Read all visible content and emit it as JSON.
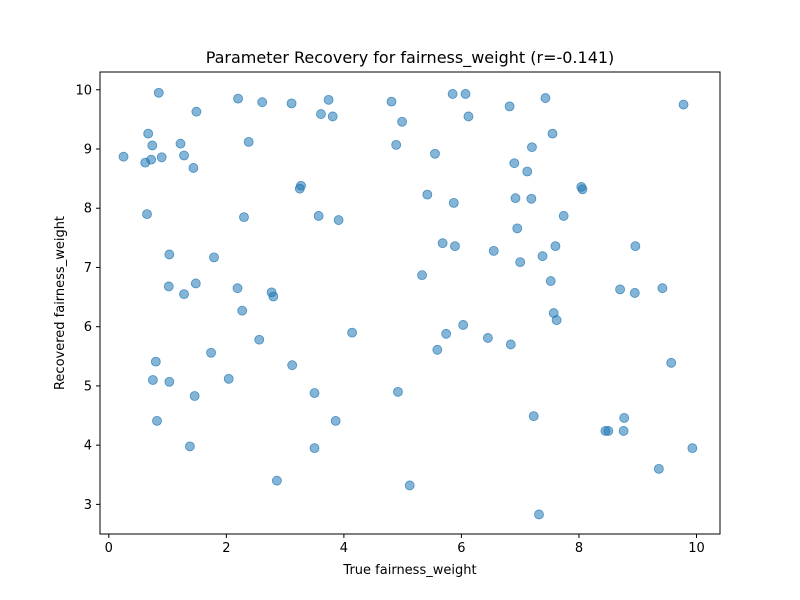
{
  "chart_data": {
    "type": "scatter",
    "title": "Parameter Recovery for fairness_weight (r=-0.141)",
    "xlabel": "True fairness_weight",
    "ylabel": "Recovered fairness_weight",
    "xlim": [
      -0.15,
      10.4
    ],
    "ylim": [
      2.5,
      10.3
    ],
    "xticks": [
      0,
      2,
      4,
      6,
      8,
      10
    ],
    "yticks": [
      3,
      4,
      5,
      6,
      7,
      8,
      9,
      10
    ],
    "grid": false,
    "marker_color": "#1f77b4",
    "marker_alpha": 0.55,
    "points": [
      {
        "x": 0.85,
        "y": 9.95
      },
      {
        "x": 0.25,
        "y": 8.87
      },
      {
        "x": 0.62,
        "y": 8.77
      },
      {
        "x": 0.67,
        "y": 9.26
      },
      {
        "x": 0.72,
        "y": 8.82
      },
      {
        "x": 0.74,
        "y": 9.06
      },
      {
        "x": 0.9,
        "y": 8.86
      },
      {
        "x": 1.22,
        "y": 9.09
      },
      {
        "x": 1.28,
        "y": 8.89
      },
      {
        "x": 1.44,
        "y": 8.68
      },
      {
        "x": 1.49,
        "y": 9.63
      },
      {
        "x": 2.2,
        "y": 9.85
      },
      {
        "x": 2.38,
        "y": 9.12
      },
      {
        "x": 2.61,
        "y": 9.79
      },
      {
        "x": 3.11,
        "y": 9.77
      },
      {
        "x": 3.61,
        "y": 9.59
      },
      {
        "x": 3.74,
        "y": 9.83
      },
      {
        "x": 3.81,
        "y": 9.55
      },
      {
        "x": 4.81,
        "y": 9.8
      },
      {
        "x": 4.99,
        "y": 9.46
      },
      {
        "x": 4.89,
        "y": 9.07
      },
      {
        "x": 5.85,
        "y": 9.93
      },
      {
        "x": 6.07,
        "y": 9.93
      },
      {
        "x": 6.12,
        "y": 9.55
      },
      {
        "x": 6.82,
        "y": 9.72
      },
      {
        "x": 7.43,
        "y": 9.86
      },
      {
        "x": 7.55,
        "y": 9.26
      },
      {
        "x": 9.78,
        "y": 9.75
      },
      {
        "x": 5.55,
        "y": 8.92
      },
      {
        "x": 7.2,
        "y": 9.03
      },
      {
        "x": 6.9,
        "y": 8.76
      },
      {
        "x": 7.12,
        "y": 8.62
      },
      {
        "x": 0.65,
        "y": 7.9
      },
      {
        "x": 2.3,
        "y": 7.85
      },
      {
        "x": 3.25,
        "y": 8.33
      },
      {
        "x": 3.27,
        "y": 8.38
      },
      {
        "x": 3.57,
        "y": 7.87
      },
      {
        "x": 3.91,
        "y": 7.8
      },
      {
        "x": 5.42,
        "y": 8.23
      },
      {
        "x": 5.87,
        "y": 8.09
      },
      {
        "x": 6.92,
        "y": 8.17
      },
      {
        "x": 7.19,
        "y": 8.16
      },
      {
        "x": 8.04,
        "y": 8.36
      },
      {
        "x": 8.06,
        "y": 8.32
      },
      {
        "x": 7.74,
        "y": 7.87
      },
      {
        "x": 6.95,
        "y": 7.66
      },
      {
        "x": 1.03,
        "y": 7.22
      },
      {
        "x": 1.79,
        "y": 7.17
      },
      {
        "x": 5.68,
        "y": 7.41
      },
      {
        "x": 5.89,
        "y": 7.36
      },
      {
        "x": 6.55,
        "y": 7.28
      },
      {
        "x": 7.0,
        "y": 7.09
      },
      {
        "x": 7.38,
        "y": 7.19
      },
      {
        "x": 7.6,
        "y": 7.36
      },
      {
        "x": 8.96,
        "y": 7.36
      },
      {
        "x": 5.33,
        "y": 6.87
      },
      {
        "x": 1.02,
        "y": 6.68
      },
      {
        "x": 1.28,
        "y": 6.55
      },
      {
        "x": 1.48,
        "y": 6.73
      },
      {
        "x": 2.19,
        "y": 6.65
      },
      {
        "x": 2.77,
        "y": 6.58
      },
      {
        "x": 2.8,
        "y": 6.51
      },
      {
        "x": 2.27,
        "y": 6.27
      },
      {
        "x": 7.52,
        "y": 6.77
      },
      {
        "x": 8.7,
        "y": 6.63
      },
      {
        "x": 8.95,
        "y": 6.57
      },
      {
        "x": 9.42,
        "y": 6.65
      },
      {
        "x": 7.57,
        "y": 6.23
      },
      {
        "x": 7.62,
        "y": 6.11
      },
      {
        "x": 6.03,
        "y": 6.03
      },
      {
        "x": 4.14,
        "y": 5.9
      },
      {
        "x": 5.74,
        "y": 5.88
      },
      {
        "x": 6.45,
        "y": 5.81
      },
      {
        "x": 2.56,
        "y": 5.78
      },
      {
        "x": 6.84,
        "y": 5.7
      },
      {
        "x": 5.59,
        "y": 5.61
      },
      {
        "x": 1.74,
        "y": 5.56
      },
      {
        "x": 0.8,
        "y": 5.41
      },
      {
        "x": 3.12,
        "y": 5.35
      },
      {
        "x": 9.57,
        "y": 5.39
      },
      {
        "x": 0.75,
        "y": 5.1
      },
      {
        "x": 1.03,
        "y": 5.07
      },
      {
        "x": 2.04,
        "y": 5.12
      },
      {
        "x": 1.46,
        "y": 4.83
      },
      {
        "x": 3.5,
        "y": 4.88
      },
      {
        "x": 4.92,
        "y": 4.9
      },
      {
        "x": 0.82,
        "y": 4.41
      },
      {
        "x": 3.86,
        "y": 4.41
      },
      {
        "x": 7.23,
        "y": 4.49
      },
      {
        "x": 8.77,
        "y": 4.46
      },
      {
        "x": 8.45,
        "y": 4.24
      },
      {
        "x": 8.5,
        "y": 4.24
      },
      {
        "x": 8.76,
        "y": 4.24
      },
      {
        "x": 1.38,
        "y": 3.98
      },
      {
        "x": 3.5,
        "y": 3.95
      },
      {
        "x": 9.93,
        "y": 3.95
      },
      {
        "x": 9.36,
        "y": 3.6
      },
      {
        "x": 2.86,
        "y": 3.4
      },
      {
        "x": 5.12,
        "y": 3.32
      },
      {
        "x": 7.32,
        "y": 2.83
      }
    ]
  }
}
